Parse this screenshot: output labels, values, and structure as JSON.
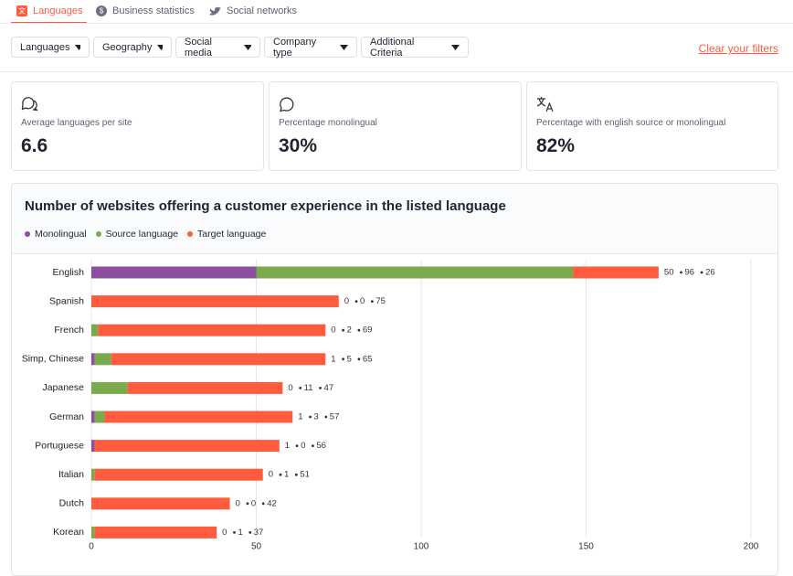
{
  "tabs": [
    "Languages",
    "Business statistics",
    "Social networks"
  ],
  "filters": [
    "Languages",
    "Geography",
    "Social media",
    "Company type",
    "Additional Criteria"
  ],
  "clear_filters": "Clear your filters",
  "stats": [
    {
      "label": "Average languages per site",
      "value": "6.6"
    },
    {
      "label": "Percentage monolingual",
      "value": "30%"
    },
    {
      "label": "Percentage with english source or monolingual",
      "value": "82%"
    }
  ],
  "chart_data": {
    "type": "bar",
    "orientation": "horizontal",
    "stacked": true,
    "title": "Number of websites offering a customer experience in the listed language",
    "categories": [
      "English",
      "Spanish",
      "French",
      "Simp, Chinese",
      "Japanese",
      "German",
      "Portuguese",
      "Italian",
      "Dutch",
      "Korean"
    ],
    "series": [
      {
        "name": "Monolingual",
        "color": "#8c4f9f",
        "values": [
          50,
          0,
          0,
          1,
          0,
          1,
          1,
          0,
          0,
          0
        ]
      },
      {
        "name": "Source language",
        "color": "#79aa4b",
        "values": [
          96,
          0,
          2,
          5,
          11,
          3,
          0,
          1,
          0,
          1
        ]
      },
      {
        "name": "Target language",
        "color": "#ff5b3d",
        "values": [
          26,
          75,
          69,
          65,
          47,
          57,
          56,
          51,
          42,
          37
        ]
      }
    ],
    "xlim": [
      0,
      200
    ],
    "xticks": [
      0,
      50,
      100,
      150,
      200
    ],
    "grid": true
  }
}
